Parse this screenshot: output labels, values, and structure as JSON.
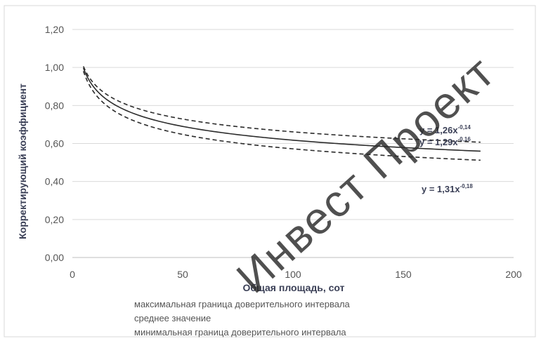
{
  "chart_data": {
    "type": "line",
    "title": "",
    "xlabel": "Общая площадь, сот",
    "ylabel": "Корректирующий коэффициент",
    "xlim": [
      0,
      200
    ],
    "ylim": [
      0,
      1.2
    ],
    "x_ticks": [
      "0",
      "50",
      "100",
      "150",
      "200"
    ],
    "y_ticks": [
      "0,00",
      "0,20",
      "0,40",
      "0,60",
      "0,80",
      "1,00",
      "1,20"
    ],
    "grid": "horizontal",
    "legend_position": "bottom",
    "series": [
      {
        "name": "максимальная граница доверительного интервала",
        "style": "dashed",
        "color": "#2b2b2b",
        "equation_label": "y = 1,26x",
        "equation_exp": "-0,14",
        "coef": 1.26,
        "exp": -0.14,
        "x_start": 5,
        "x_end": 185
      },
      {
        "name": "среднее значение",
        "style": "solid",
        "color": "#2b2b2b",
        "equation_label": "y = 1,29x",
        "equation_exp": "-0,16",
        "coef": 1.29,
        "exp": -0.16,
        "x_start": 5,
        "x_end": 185
      },
      {
        "name": "минимальная граница доверительного интервала",
        "style": "dashed",
        "color": "#2b2b2b",
        "equation_label": "y = 1,31x",
        "equation_exp": "-0,18",
        "coef": 1.31,
        "exp": -0.18,
        "x_start": 5,
        "x_end": 185
      }
    ]
  },
  "watermark": "Инвест Проект"
}
